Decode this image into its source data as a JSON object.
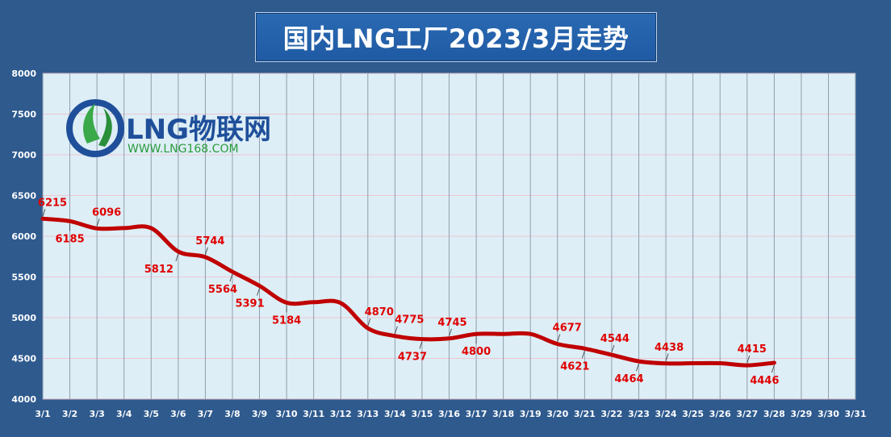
{
  "title": "国内LNG工厂2023/3月走势",
  "logo": {
    "brand": "LNG物联网",
    "url": "WWW.LNG168.COM"
  },
  "colors": {
    "background": "#2e5a8e",
    "plot_area": "#ddeef6",
    "line": "#c00000",
    "labels": "#e00000",
    "axis_text": "#ffffff"
  },
  "chart_data": {
    "type": "line",
    "title": "国内LNG工厂2023/3月走势",
    "xlabel": "",
    "ylabel": "",
    "categories": [
      "3/1",
      "3/2",
      "3/3",
      "3/4",
      "3/5",
      "3/6",
      "3/7",
      "3/8",
      "3/9",
      "3/10",
      "3/11",
      "3/12",
      "3/13",
      "3/14",
      "3/15",
      "3/16",
      "3/17",
      "3/18",
      "3/19",
      "3/20",
      "3/21",
      "3/22",
      "3/23",
      "3/24",
      "3/25",
      "3/26",
      "3/27",
      "3/28",
      "3/29",
      "3/30",
      "3/31"
    ],
    "ylim": [
      4000,
      8000
    ],
    "yticks": [
      4000,
      4500,
      5000,
      5500,
      6000,
      6500,
      7000,
      7500,
      8000
    ],
    "grid": true,
    "series": [
      {
        "values": [
          6215,
          6185,
          6096,
          6100,
          6100,
          5812,
          5744,
          5564,
          5391,
          5184,
          5190,
          5180,
          4870,
          4775,
          4737,
          4745,
          4800,
          4800,
          4800,
          4677,
          4621,
          4544,
          4464,
          4438,
          4440,
          4440,
          4415,
          4446,
          null,
          null,
          null
        ]
      }
    ],
    "data_labels": [
      {
        "category": "3/1",
        "value": 6215,
        "text": "6215"
      },
      {
        "category": "3/2",
        "value": 6185,
        "text": "6185"
      },
      {
        "category": "3/3",
        "value": 6096,
        "text": "6096"
      },
      {
        "category": "3/6",
        "value": 5812,
        "text": "5812"
      },
      {
        "category": "3/7",
        "value": 5744,
        "text": "5744"
      },
      {
        "category": "3/8",
        "value": 5564,
        "text": "5564"
      },
      {
        "category": "3/9",
        "value": 5391,
        "text": "5391"
      },
      {
        "category": "3/10",
        "value": 5184,
        "text": "5184"
      },
      {
        "category": "3/13",
        "value": 4870,
        "text": "4870"
      },
      {
        "category": "3/14",
        "value": 4775,
        "text": "4775"
      },
      {
        "category": "3/15",
        "value": 4737,
        "text": "4737"
      },
      {
        "category": "3/16",
        "value": 4745,
        "text": "4745"
      },
      {
        "category": "3/17",
        "value": 4800,
        "text": "4800"
      },
      {
        "category": "3/20",
        "value": 4677,
        "text": "4677"
      },
      {
        "category": "3/21",
        "value": 4621,
        "text": "4621"
      },
      {
        "category": "3/22",
        "value": 4544,
        "text": "4544"
      },
      {
        "category": "3/23",
        "value": 4464,
        "text": "4464"
      },
      {
        "category": "3/24",
        "value": 4438,
        "text": "4438"
      },
      {
        "category": "3/27",
        "value": 4415,
        "text": "4415"
      },
      {
        "category": "3/28",
        "value": 4446,
        "text": "4446"
      }
    ]
  }
}
